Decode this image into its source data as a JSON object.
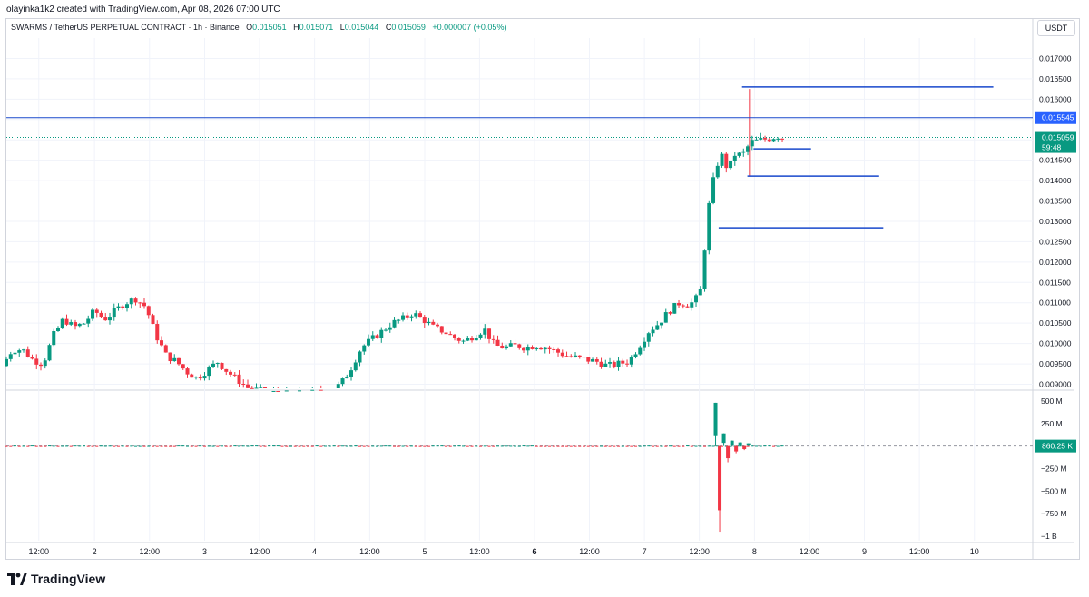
{
  "header": {
    "credit": "olayinka1k2 created with TradingView.com, Apr 08, 2026 07:00 UTC"
  },
  "legend": {
    "symbol": "SWARMS / TetherUS PERPETUAL CONTRACT · 1h · Binance",
    "o_label": "O",
    "o_value": "0.015051",
    "h_label": "H",
    "h_value": "0.015071",
    "l_label": "L",
    "l_value": "0.015044",
    "c_label": "C",
    "c_value": "0.015059",
    "change": "+0.000007 (+0.05%)"
  },
  "axis": {
    "currency": "USDT"
  },
  "footer": {
    "brand": "TradingView"
  },
  "colors": {
    "up": "#089981",
    "down": "#f23645",
    "hline": "#1848cc",
    "level": "#2962ff",
    "grid": "#f0f3fa"
  },
  "chart_data": [
    {
      "type": "candlestick",
      "symbol": "SWARMS / TetherUS PERPETUAL CONTRACT",
      "interval": "1h",
      "ylim": [
        0.0089,
        0.0175
      ],
      "price_ticks": [
        "0.017000",
        "0.016500",
        "0.016000",
        "0.015500",
        "0.015000",
        "0.014500",
        "0.014000",
        "0.013500",
        "0.013000",
        "0.012500",
        "0.012000",
        "0.011500",
        "0.011000",
        "0.010500",
        "0.010000",
        "0.009500",
        "0.009000"
      ],
      "price_tick_values": [
        0.017,
        0.0165,
        0.016,
        0.0155,
        0.015,
        0.0145,
        0.014,
        0.0135,
        0.013,
        0.0125,
        0.012,
        0.0115,
        0.011,
        0.0105,
        0.01,
        0.0095,
        0.009
      ],
      "x_labels": [
        {
          "label": "12:00",
          "pos": 0.0316,
          "bold": false
        },
        {
          "label": "2",
          "pos": 0.0859,
          "bold": false
        },
        {
          "label": "12:00",
          "pos": 0.1395,
          "bold": false
        },
        {
          "label": "3",
          "pos": 0.1932,
          "bold": false
        },
        {
          "label": "12:00",
          "pos": 0.2467,
          "bold": false
        },
        {
          "label": "4",
          "pos": 0.3003,
          "bold": false
        },
        {
          "label": "12:00",
          "pos": 0.354,
          "bold": false
        },
        {
          "label": "5",
          "pos": 0.4076,
          "bold": false
        },
        {
          "label": "12:00",
          "pos": 0.461,
          "bold": false
        },
        {
          "label": "6",
          "pos": 0.5146,
          "bold": true
        },
        {
          "label": "12:00",
          "pos": 0.5681,
          "bold": false
        },
        {
          "label": "7",
          "pos": 0.6217,
          "bold": false
        },
        {
          "label": "12:00",
          "pos": 0.6752,
          "bold": false
        },
        {
          "label": "8",
          "pos": 0.7289,
          "bold": false
        },
        {
          "label": "12:00",
          "pos": 0.7824,
          "bold": false
        },
        {
          "label": "9",
          "pos": 0.836,
          "bold": false
        },
        {
          "label": "12:00",
          "pos": 0.8896,
          "bold": false
        },
        {
          "label": "10",
          "pos": 0.9432,
          "bold": false
        }
      ],
      "path_points": [
        [
          0.0,
          0.00945
        ],
        [
          0.01,
          0.00985
        ],
        [
          0.02,
          0.00985
        ],
        [
          0.03,
          0.0096
        ],
        [
          0.04,
          0.0095
        ],
        [
          0.05,
          0.0102
        ],
        [
          0.06,
          0.0106
        ],
        [
          0.07,
          0.0104
        ],
        [
          0.08,
          0.0105
        ],
        [
          0.09,
          0.0108
        ],
        [
          0.1,
          0.0106
        ],
        [
          0.11,
          0.0108
        ],
        [
          0.12,
          0.011
        ],
        [
          0.13,
          0.0111
        ],
        [
          0.14,
          0.0109
        ],
        [
          0.15,
          0.0102
        ],
        [
          0.16,
          0.0097
        ],
        [
          0.17,
          0.00955
        ],
        [
          0.18,
          0.0093
        ],
        [
          0.19,
          0.00915
        ],
        [
          0.2,
          0.00935
        ],
        [
          0.21,
          0.00955
        ],
        [
          0.22,
          0.0093
        ],
        [
          0.23,
          0.0091
        ],
        [
          0.24,
          0.0089
        ],
        [
          0.26,
          0.0088
        ],
        [
          0.28,
          0.00875
        ],
        [
          0.3,
          0.00878
        ],
        [
          0.32,
          0.00885
        ],
        [
          0.33,
          0.009
        ],
        [
          0.34,
          0.0094
        ],
        [
          0.35,
          0.0099
        ],
        [
          0.36,
          0.0101
        ],
        [
          0.37,
          0.0103
        ],
        [
          0.38,
          0.0105
        ],
        [
          0.39,
          0.0106
        ],
        [
          0.4,
          0.01075
        ],
        [
          0.41,
          0.0106
        ],
        [
          0.42,
          0.0104
        ],
        [
          0.43,
          0.0103
        ],
        [
          0.44,
          0.01015
        ],
        [
          0.45,
          0.01005
        ],
        [
          0.46,
          0.0102
        ],
        [
          0.47,
          0.01035
        ],
        [
          0.48,
          0.00995
        ],
        [
          0.49,
          0.0099
        ],
        [
          0.5,
          0.00995
        ],
        [
          0.51,
          0.0099
        ],
        [
          0.52,
          0.00995
        ],
        [
          0.53,
          0.0099
        ],
        [
          0.54,
          0.0098
        ],
        [
          0.55,
          0.0097
        ],
        [
          0.56,
          0.00965
        ],
        [
          0.57,
          0.0096
        ],
        [
          0.58,
          0.00955
        ],
        [
          0.59,
          0.00945
        ],
        [
          0.6,
          0.0095
        ],
        [
          0.61,
          0.00955
        ],
        [
          0.62,
          0.0099
        ],
        [
          0.63,
          0.0103
        ],
        [
          0.64,
          0.0105
        ],
        [
          0.65,
          0.0108
        ],
        [
          0.66,
          0.011
        ],
        [
          0.67,
          0.01095
        ],
        [
          0.68,
          0.0112
        ],
        [
          0.69,
          0.0137
        ],
        [
          0.7,
          0.0147
        ],
        [
          0.705,
          0.01435
        ],
        [
          0.71,
          0.0144
        ],
        [
          0.715,
          0.0147
        ],
        [
          0.72,
          0.0146
        ],
        [
          0.73,
          0.01495
        ],
        [
          0.74,
          0.015
        ],
        [
          0.75,
          0.01505
        ],
        [
          0.755,
          0.0151
        ],
        [
          0.76,
          0.01505
        ]
      ],
      "current_price": {
        "label": "0.015059",
        "value": 0.015059,
        "countdown": "59:48"
      },
      "horizontal_line": {
        "label": "0.015545",
        "value": 0.015545
      },
      "drawn_levels": [
        {
          "value": 0.0163,
          "x_from": 0.7168,
          "x_to": 0.9616
        },
        {
          "value": 0.01478,
          "x_from": 0.728,
          "x_to": 0.784
        },
        {
          "value": 0.01411,
          "x_from": 0.722,
          "x_to": 0.8504
        },
        {
          "value": 0.01284,
          "x_from": 0.694,
          "x_to": 0.8544
        }
      ]
    },
    {
      "type": "bar",
      "title": "",
      "ylim": [
        -1050000000,
        600000000
      ],
      "ticks": [
        "500 M",
        "250 M",
        "0",
        "−250 M",
        "−500 M",
        "−750 M",
        "−1 B"
      ],
      "tick_values": [
        500000000,
        250000000,
        0,
        -250000000,
        -500000000,
        -750000000,
        -1000000000
      ],
      "last_value": {
        "label": "860.25 K",
        "value": 860250
      },
      "spikes": [
        {
          "pos": 0.691,
          "value": 480000000
        },
        {
          "pos": 0.695,
          "value": -950000000
        },
        {
          "pos": 0.699,
          "value": 140000000
        },
        {
          "pos": 0.703,
          "value": -180000000
        },
        {
          "pos": 0.707,
          "value": 60000000
        },
        {
          "pos": 0.711,
          "value": -80000000
        },
        {
          "pos": 0.715,
          "value": 40000000
        },
        {
          "pos": 0.719,
          "value": -45000000
        },
        {
          "pos": 0.723,
          "value": 30000000
        }
      ]
    }
  ]
}
